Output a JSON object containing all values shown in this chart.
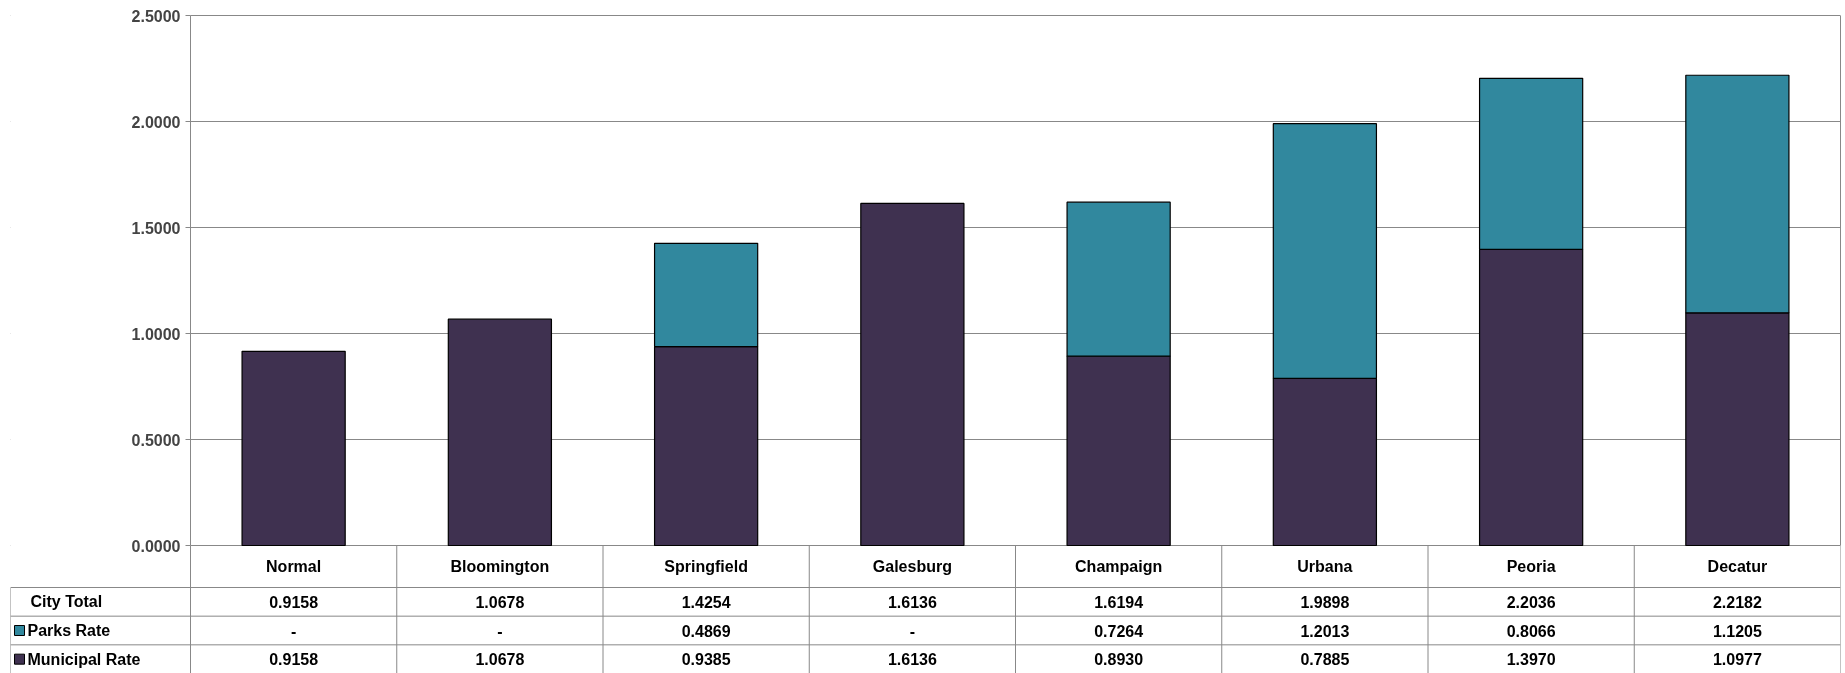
{
  "chart_data": {
    "type": "bar",
    "stacked": true,
    "categories": [
      "Normal",
      "Bloomington",
      "Springfield",
      "Galesburg",
      "Champaign",
      "Urbana",
      "Peoria",
      "Decatur"
    ],
    "series": [
      {
        "name": "Municipal Rate",
        "color": "#3f3150",
        "values": [
          0.9158,
          1.0678,
          0.9385,
          1.6136,
          0.893,
          0.7885,
          1.397,
          1.0977
        ],
        "value_labels": [
          "0.9158",
          "1.0678",
          "0.9385",
          "1.6136",
          "0.8930",
          "0.7885",
          "1.3970",
          "1.0977"
        ]
      },
      {
        "name": "Parks Rate",
        "color": "#31889e",
        "values": [
          null,
          null,
          0.4869,
          null,
          0.7264,
          1.2013,
          0.8066,
          1.1205
        ],
        "value_labels": [
          "-",
          "-",
          "0.4869",
          "-",
          "0.7264",
          "1.2013",
          "0.8066",
          "1.1205"
        ]
      }
    ],
    "totals": [
      "0.9158",
      "1.0678",
      "1.4254",
      "1.6136",
      "1.6194",
      "1.9898",
      "2.2036",
      "2.2182"
    ],
    "annotations": [
      "City Total"
    ],
    "ylim": [
      0,
      2.5
    ],
    "yticks": [
      {
        "value": 0,
        "label": "0.0000"
      },
      {
        "value": 0.5,
        "label": "0.5000"
      },
      {
        "value": 1,
        "label": "1.0000"
      },
      {
        "value": 1.5,
        "label": "1.5000"
      },
      {
        "value": 2,
        "label": "2.0000"
      },
      {
        "value": 2.5,
        "label": "2.5000"
      }
    ],
    "grid": "y",
    "legend": "bottom"
  }
}
